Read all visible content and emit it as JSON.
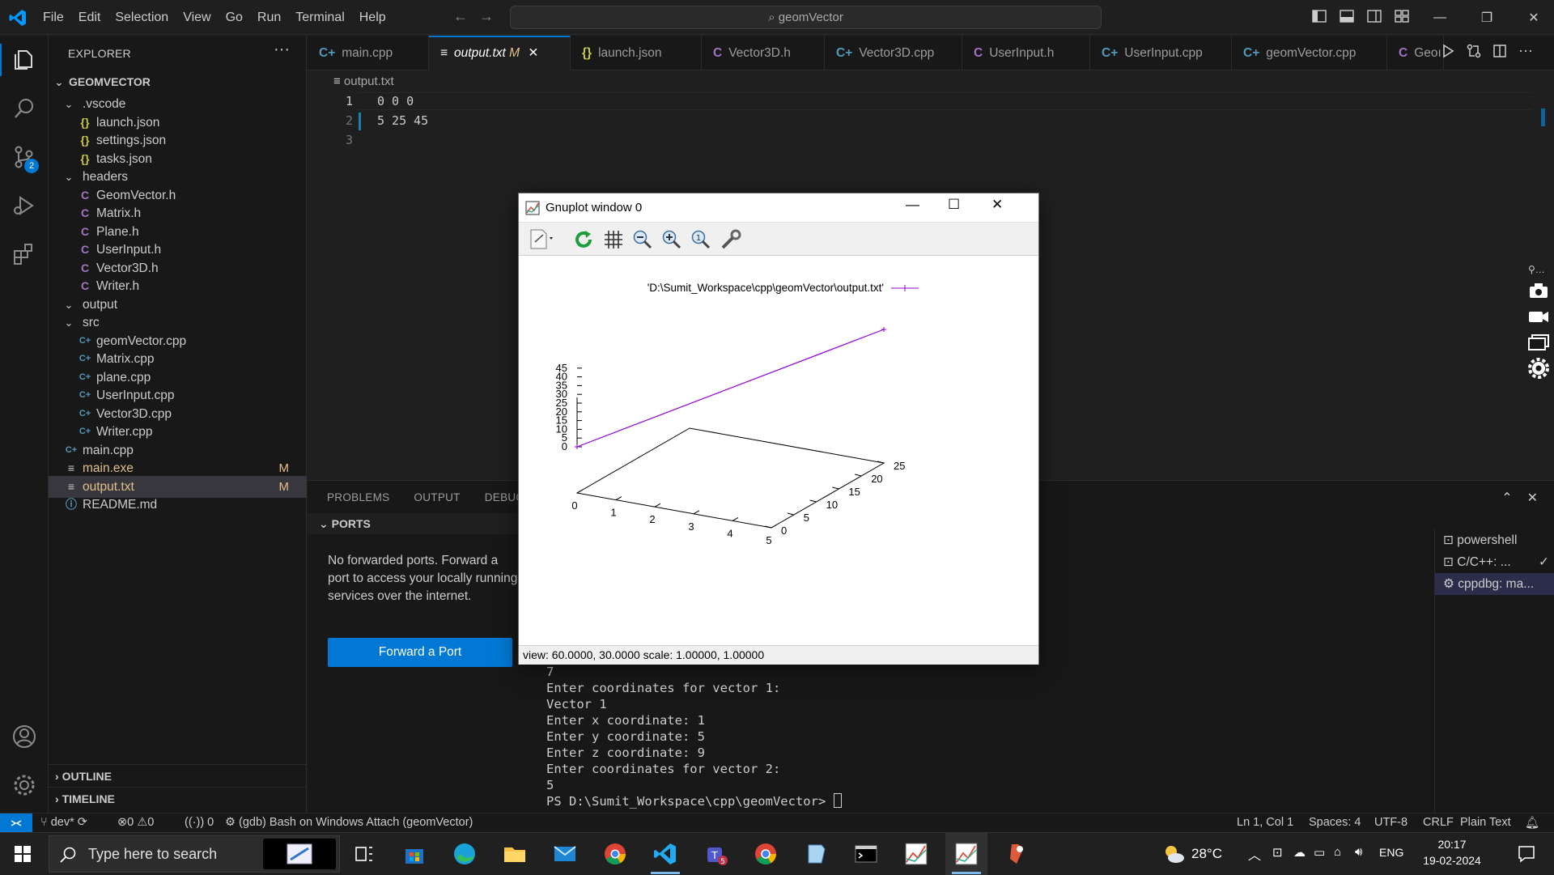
{
  "titlebar": {
    "menus": [
      "File",
      "Edit",
      "Selection",
      "View",
      "Go",
      "Run",
      "Terminal",
      "Help"
    ],
    "search_text": "geomVector"
  },
  "explorer": {
    "header": "EXPLORER",
    "root": "GEOMVECTOR",
    "tree": [
      {
        "label": ".vscode",
        "type": "folder",
        "depth": 1
      },
      {
        "label": "launch.json",
        "type": "json",
        "depth": 2
      },
      {
        "label": "settings.json",
        "type": "json",
        "depth": 2
      },
      {
        "label": "tasks.json",
        "type": "json",
        "depth": 2
      },
      {
        "label": "headers",
        "type": "folder",
        "depth": 1
      },
      {
        "label": "GeomVector.h",
        "type": "h",
        "depth": 2
      },
      {
        "label": "Matrix.h",
        "type": "h",
        "depth": 2
      },
      {
        "label": "Plane.h",
        "type": "h",
        "depth": 2
      },
      {
        "label": "UserInput.h",
        "type": "h",
        "depth": 2
      },
      {
        "label": "Vector3D.h",
        "type": "h",
        "depth": 2
      },
      {
        "label": "Writer.h",
        "type": "h",
        "depth": 2
      },
      {
        "label": "output",
        "type": "folder",
        "depth": 1
      },
      {
        "label": "src",
        "type": "folder",
        "depth": 1
      },
      {
        "label": "geomVector.cpp",
        "type": "cpp",
        "depth": 2
      },
      {
        "label": "Matrix.cpp",
        "type": "cpp",
        "depth": 2
      },
      {
        "label": "plane.cpp",
        "type": "cpp",
        "depth": 2
      },
      {
        "label": "UserInput.cpp",
        "type": "cpp",
        "depth": 2
      },
      {
        "label": "Vector3D.cpp",
        "type": "cpp",
        "depth": 2
      },
      {
        "label": "Writer.cpp",
        "type": "cpp",
        "depth": 2
      },
      {
        "label": "main.cpp",
        "type": "cpp",
        "depth": 1
      },
      {
        "label": "main.exe",
        "type": "exe",
        "depth": 1,
        "badge": "M"
      },
      {
        "label": "output.txt",
        "type": "txt",
        "depth": 1,
        "badge": "M",
        "selected": true
      },
      {
        "label": "README.md",
        "type": "info",
        "depth": 1
      }
    ],
    "outline": "OUTLINE",
    "timeline": "TIMELINE",
    "scm_badge": "2"
  },
  "tabs": [
    {
      "label": "main.cpp",
      "icon": "C+",
      "active": false
    },
    {
      "label": "output.txt",
      "icon": "≡",
      "active": true,
      "badge": "M"
    },
    {
      "label": "launch.json",
      "icon": "{}",
      "active": false
    },
    {
      "label": "Vector3D.h",
      "icon": "C",
      "active": false
    },
    {
      "label": "Vector3D.cpp",
      "icon": "C+",
      "active": false
    },
    {
      "label": "UserInput.h",
      "icon": "C",
      "active": false
    },
    {
      "label": "UserInput.cpp",
      "icon": "C+",
      "active": false
    },
    {
      "label": "geomVector.cpp",
      "icon": "C+",
      "active": false
    },
    {
      "label": "Geoı",
      "icon": "C",
      "active": false
    }
  ],
  "editor": {
    "breadcrumb": "output.txt",
    "lines": [
      {
        "n": "1",
        "text": "0 0 0"
      },
      {
        "n": "2",
        "text": "5 25 45"
      },
      {
        "n": "3",
        "text": ""
      }
    ]
  },
  "panel": {
    "tabs": [
      "PROBLEMS",
      "OUTPUT",
      "DEBUG C"
    ],
    "ports_header": "PORTS",
    "ports_message": "No forwarded ports. Forward a port to access your locally running services over the internet.",
    "forward_button": "Forward a Port",
    "terminal_lines": [
      "7",
      "Enter coordinates for vector 1:",
      "Vector 1",
      "Enter x coordinate: 1",
      "Enter y coordinate: 5",
      "Enter z coordinate: 9",
      "Enter coordinates for vector 2:",
      "5"
    ],
    "prompt": "PS D:\\Sumit_Workspace\\cpp\\geomVector> ",
    "terminals": [
      {
        "label": "powershell",
        "selected": false
      },
      {
        "label": "C/C++: ...",
        "selected": false
      },
      {
        "label": "cppdbg: ma...",
        "selected": true
      }
    ]
  },
  "statusbar": {
    "branch": "dev*",
    "errors": "0",
    "warnings": "0",
    "ports": "0",
    "debug": "(gdb) Bash on Windows Attach (geomVector)",
    "position": "Ln 1, Col 1",
    "spaces": "Spaces: 4",
    "encoding": "UTF-8",
    "eol": "CRLF",
    "language": "Plain Text"
  },
  "gnuplot": {
    "title": "Gnuplot window 0",
    "legend": "'D:\\Sumit_Workspace\\cpp\\geomVector\\output.txt'",
    "status": "view: 60.0000,  30.0000   scale: 1.00000,  1.00000",
    "colors": {
      "series": "#9400d3"
    }
  },
  "chart_data": {
    "type": "line",
    "x": [
      0,
      5
    ],
    "y": [
      0,
      25
    ],
    "z": [
      0,
      45
    ],
    "series": [
      {
        "name": "'D:\\Sumit_Workspace\\cpp\\geomVector\\output.txt'",
        "points": [
          [
            0,
            0,
            0
          ],
          [
            5,
            25,
            45
          ]
        ]
      }
    ],
    "xticks": [
      "0",
      "1",
      "2",
      "3",
      "4",
      "5"
    ],
    "yticks": [
      "0",
      "5",
      "10",
      "15",
      "20",
      "25"
    ],
    "zticks": [
      "0",
      "5",
      "10",
      "15",
      "20",
      "25",
      "30",
      "35",
      "40",
      "45"
    ],
    "xlim": [
      0,
      5
    ],
    "ylim": [
      0,
      25
    ],
    "zlim": [
      0,
      45
    ],
    "view": [
      60,
      30
    ]
  },
  "taskbar": {
    "search_placeholder": "Type here to search",
    "weather": "28°C",
    "language": "ENG",
    "time": "20:17",
    "date": "19-02-2024"
  }
}
